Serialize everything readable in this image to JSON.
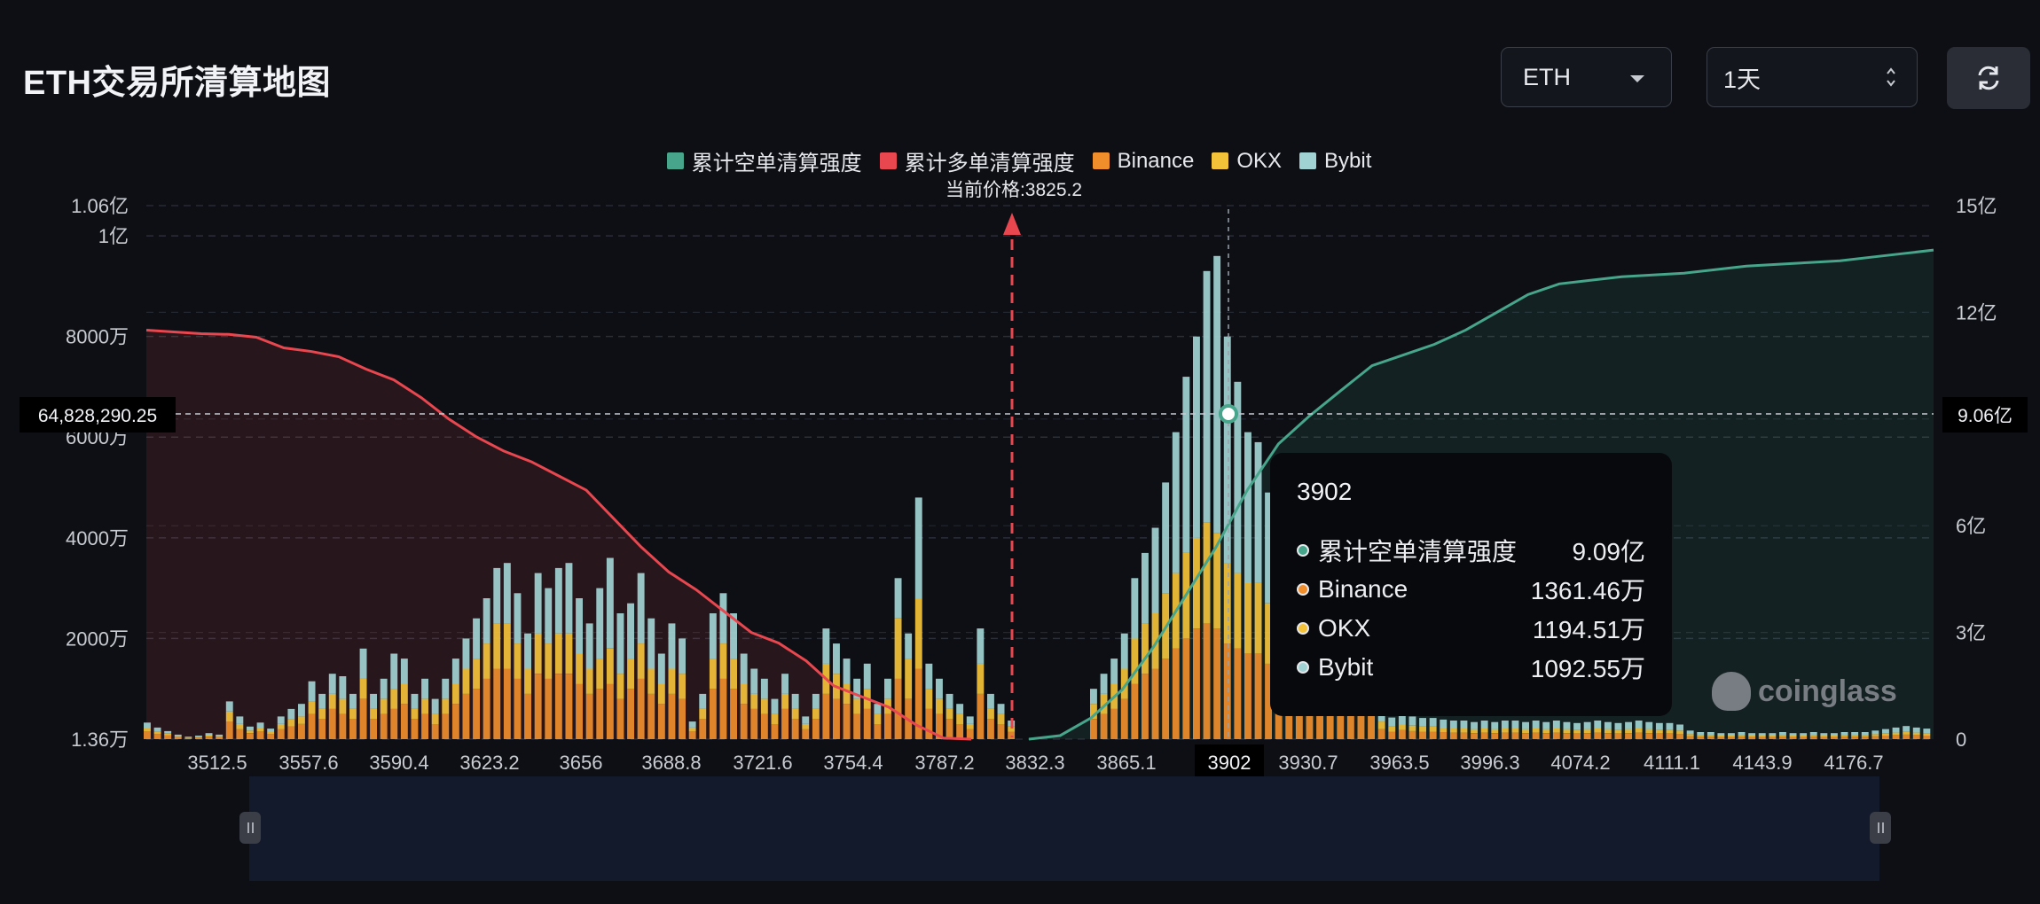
{
  "header": {
    "title": "ETH交易所清算地图",
    "symbol_select": "ETH",
    "timeframe_select": "1天",
    "refresh_icon": "refresh-icon"
  },
  "legend": [
    {
      "label": "累计空单清算强度",
      "color": "#46a58b"
    },
    {
      "label": "累计多单清算强度",
      "color": "#e8474f"
    },
    {
      "label": "Binance",
      "color": "#f08e2c"
    },
    {
      "label": "OKX",
      "color": "#f3c239"
    },
    {
      "label": "Bybit",
      "color": "#a1d2d3"
    }
  ],
  "current_price_label": "当前价格:3825.2",
  "crosshair": {
    "left_value": "64,828,290.25",
    "right_value": "9.06亿",
    "x_value": "3902"
  },
  "tooltip": {
    "title": "3902",
    "rows": [
      {
        "label": "累计空单清算强度",
        "value": "9.09亿",
        "color": "#46a58b"
      },
      {
        "label": "Binance",
        "value": "1361.46万",
        "color": "#f08e2c"
      },
      {
        "label": "OKX",
        "value": "1194.51万",
        "color": "#f3c239"
      },
      {
        "label": "Bybit",
        "value": "1092.55万",
        "color": "#a1d2d3"
      }
    ]
  },
  "watermark": "coinglass",
  "chart_data": {
    "type": "bar",
    "x_tick_labels": [
      "3512.5",
      "3557.6",
      "3590.4",
      "3623.2",
      "3656",
      "3688.8",
      "3721.6",
      "3754.4",
      "3787.2",
      "3832.3",
      "3865.1",
      "3902",
      "3930.7",
      "3963.5",
      "3996.3",
      "4074.2",
      "4111.1",
      "4143.9",
      "4176.7"
    ],
    "left_axis_ticks": [
      "1.06亿",
      "1亿",
      "8000万",
      "6000万",
      "4000万",
      "2000万",
      "1.36万"
    ],
    "right_axis_ticks": [
      "15亿",
      "12亿",
      "9亿",
      "6亿",
      "3亿",
      "0"
    ],
    "left_axis_range": [
      0,
      106000000
    ],
    "right_axis_range": [
      0,
      1500000000
    ],
    "current_price": 3825.2,
    "series": [
      {
        "name": "Binance",
        "stack": true,
        "values": [
          1500000,
          1000000,
          800000,
          400000,
          200000,
          300000,
          500000,
          400000,
          3500000,
          2000000,
          1200000,
          1500000,
          1000000,
          2000000,
          2500000,
          3000000,
          5000000,
          4000000,
          6000000,
          5000000,
          4000000,
          8000000,
          4000000,
          5000000,
          6000000,
          7000000,
          4000000,
          5000000,
          3000000,
          5000000,
          7000000,
          9000000,
          10000000,
          12000000,
          14000000,
          14000000,
          12000000,
          9000000,
          13000000,
          12000000,
          13000000,
          13000000,
          11000000,
          9000000,
          10000000,
          11000000,
          8000000,
          10000000,
          12000000,
          9000000,
          7000000,
          9000000,
          8000000,
          1500000,
          4000000,
          10000000,
          12000000,
          10000000,
          7000000,
          6000000,
          5000000,
          3000000,
          6000000,
          4000000,
          2000000,
          4000000,
          9000000,
          8000000,
          7000000,
          5000000,
          6000000,
          3000000,
          5000000,
          12000000,
          8000000,
          14000000,
          6000000,
          5000000,
          4000000,
          3000000,
          2000000,
          9000000,
          4000000,
          3000000,
          1500000,
          0,
          0,
          0,
          0,
          0,
          0,
          0,
          4000000,
          5000000,
          6000000,
          8000000,
          11000000,
          13000000,
          14000000,
          16000000,
          18000000,
          20000000,
          22000000,
          23000000,
          22000000,
          19000000,
          18000000,
          17000000,
          17000000,
          15000000,
          13000000,
          14000000,
          15000000,
          13000000,
          12000000,
          11000000,
          12000000,
          10000000,
          9000000,
          8000000,
          2000000,
          1500000,
          1800000,
          1600000,
          1500000,
          1500000,
          1400000,
          1300000,
          1300000,
          1200000,
          1300000,
          1200000,
          1300000,
          1300000,
          1200000,
          1300000,
          1200000,
          1300000,
          1200000,
          1100000,
          1200000,
          1300000,
          1200000,
          1100000,
          1200000,
          1300000,
          1200000,
          1100000,
          1100000,
          1000000,
          600000,
          500000,
          500000,
          400000,
          400000,
          500000,
          400000,
          400000,
          400000,
          500000,
          400000,
          400000,
          500000,
          400000,
          400000,
          500000,
          500000,
          500000,
          600000,
          700000,
          800000,
          900000,
          800000,
          700000
        ]
      },
      {
        "name": "OKX",
        "stack": true,
        "values": [
          800000,
          500000,
          300000,
          200000,
          100000,
          100000,
          200000,
          200000,
          2000000,
          1000000,
          500000,
          800000,
          500000,
          1000000,
          1500000,
          1500000,
          2500000,
          2000000,
          3000000,
          3000000,
          2000000,
          4000000,
          2000000,
          3000000,
          4000000,
          4000000,
          2000000,
          3000000,
          2000000,
          3000000,
          4000000,
          5000000,
          6000000,
          7000000,
          9000000,
          9000000,
          7000000,
          5000000,
          8000000,
          7000000,
          8000000,
          8000000,
          6000000,
          5000000,
          6000000,
          7000000,
          5000000,
          6000000,
          7000000,
          5000000,
          4000000,
          5000000,
          5000000,
          800000,
          2000000,
          6000000,
          7000000,
          6000000,
          4000000,
          3000000,
          3000000,
          2000000,
          3000000,
          2000000,
          1000000,
          2000000,
          6000000,
          5000000,
          4000000,
          3000000,
          4000000,
          2000000,
          3000000,
          12000000,
          8000000,
          14000000,
          4000000,
          3000000,
          2000000,
          2000000,
          1000000,
          6000000,
          2000000,
          2000000,
          1000000,
          0,
          0,
          0,
          0,
          0,
          0,
          0,
          3000000,
          4000000,
          5000000,
          6000000,
          9000000,
          10000000,
          11000000,
          13000000,
          15000000,
          17000000,
          18000000,
          20000000,
          19000000,
          16000000,
          15000000,
          14000000,
          14000000,
          12000000,
          11000000,
          12000000,
          12000000,
          11000000,
          10000000,
          9000000,
          10000000,
          8000000,
          7000000,
          6000000,
          1500000,
          1000000,
          1200000,
          1100000,
          1000000,
          1000000,
          900000,
          900000,
          900000,
          800000,
          900000,
          800000,
          900000,
          900000,
          800000,
          900000,
          800000,
          900000,
          800000,
          800000,
          800000,
          900000,
          800000,
          800000,
          800000,
          900000,
          800000,
          800000,
          800000,
          700000,
          400000,
          300000,
          300000,
          300000,
          300000,
          300000,
          300000,
          300000,
          300000,
          300000,
          300000,
          300000,
          300000,
          300000,
          300000,
          300000,
          300000,
          300000,
          400000,
          500000,
          500000,
          600000,
          500000,
          500000
        ]
      },
      {
        "name": "Bybit",
        "stack": true,
        "values": [
          1000000,
          800000,
          500000,
          300000,
          200000,
          300000,
          500000,
          300000,
          2000000,
          1500000,
          800000,
          1000000,
          600000,
          1500000,
          2000000,
          2500000,
          4000000,
          3000000,
          4000000,
          4500000,
          3000000,
          6000000,
          3000000,
          4000000,
          7000000,
          5000000,
          3000000,
          4000000,
          3000000,
          4000000,
          5000000,
          6000000,
          8000000,
          9000000,
          11000000,
          12000000,
          10000000,
          7000000,
          12000000,
          11000000,
          13000000,
          14000000,
          11000000,
          9000000,
          14000000,
          18000000,
          12000000,
          11000000,
          14000000,
          10000000,
          6000000,
          9000000,
          7000000,
          1200000,
          3000000,
          9000000,
          10000000,
          9000000,
          6000000,
          5000000,
          4000000,
          3000000,
          4000000,
          3000000,
          1500000,
          3000000,
          7000000,
          6000000,
          5000000,
          4000000,
          5000000,
          2000000,
          4000000,
          8000000,
          5000000,
          20000000,
          5000000,
          4000000,
          3000000,
          2000000,
          1500000,
          7000000,
          3000000,
          2000000,
          1200000,
          0,
          0,
          0,
          0,
          0,
          0,
          0,
          3000000,
          4000000,
          5000000,
          7000000,
          12000000,
          14000000,
          17000000,
          22000000,
          28000000,
          35000000,
          40000000,
          50000000,
          55000000,
          45000000,
          38000000,
          30000000,
          28000000,
          22000000,
          18000000,
          19000000,
          22000000,
          18000000,
          15000000,
          13000000,
          14000000,
          12000000,
          10000000,
          9000000,
          2500000,
          1800000,
          2000000,
          1800000,
          1700000,
          1700000,
          1600000,
          1500000,
          1500000,
          1400000,
          1500000,
          1400000,
          1500000,
          1500000,
          1400000,
          1500000,
          1400000,
          1500000,
          1400000,
          1300000,
          1400000,
          1500000,
          1400000,
          1300000,
          1400000,
          1500000,
          1400000,
          1300000,
          1300000,
          1200000,
          700000,
          600000,
          600000,
          500000,
          500000,
          600000,
          500000,
          500000,
          500000,
          600000,
          500000,
          500000,
          600000,
          500000,
          500000,
          600000,
          600000,
          600000,
          700000,
          800000,
          1000000,
          1100000,
          1000000,
          900000
        ]
      },
      {
        "name": "累计多单清算强度",
        "axis": "right",
        "line_values": [
          1150000000,
          1145000000,
          1140000000,
          1138000000,
          1130000000,
          1100000000,
          1090000000,
          1075000000,
          1040000000,
          1010000000,
          960000000,
          900000000,
          850000000,
          810000000,
          780000000,
          740000000,
          700000000,
          620000000,
          540000000,
          470000000,
          420000000,
          360000000,
          300000000,
          270000000,
          220000000,
          150000000,
          120000000,
          90000000,
          40000000,
          3000000,
          0
        ]
      },
      {
        "name": "累计空单清算强度",
        "axis": "right",
        "line_values": [
          0,
          10000000,
          60000000,
          140000000,
          260000000,
          400000000,
          540000000,
          700000000,
          830000000,
          909000000,
          980000000,
          1050000000,
          1080000000,
          1110000000,
          1150000000,
          1200000000,
          1250000000,
          1280000000,
          1290000000,
          1300000000,
          1305000000,
          1310000000,
          1320000000,
          1330000000,
          1335000000,
          1340000000,
          1345000000,
          1355000000,
          1365000000,
          1375000000
        ]
      }
    ]
  }
}
